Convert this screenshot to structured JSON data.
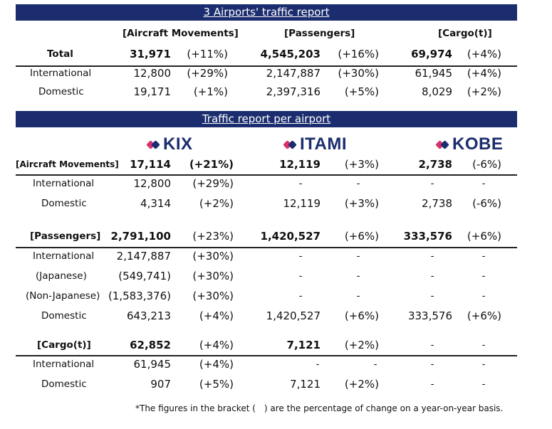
{
  "summary": {
    "title": "3 Airports' traffic report",
    "headers": [
      "[Aircraft Movements]",
      "[Passengers]",
      "[Cargo(t)]"
    ],
    "rows": [
      {
        "label": "Total",
        "am": "31,971",
        "am_pct": "(+11%)",
        "pax": "4,545,203",
        "pax_pct": "(+16%)",
        "cargo": "69,974",
        "cargo_pct": "(+4%)"
      },
      {
        "label": "International",
        "am": "12,800",
        "am_pct": "(+29%)",
        "pax": "2,147,887",
        "pax_pct": "(+30%)",
        "cargo": "61,945",
        "cargo_pct": "(+4%)"
      },
      {
        "label": "Domestic",
        "am": "19,171",
        "am_pct": "(+1%)",
        "pax": "2,397,316",
        "pax_pct": "(+5%)",
        "cargo": "8,029",
        "cargo_pct": "(+2%)"
      }
    ]
  },
  "per_airport": {
    "title": "Traffic report per airport",
    "airports": [
      {
        "name": "KIX",
        "icon": "kix-logo-icon",
        "color": "#1b2d6e"
      },
      {
        "name": "ITAMI",
        "icon": "itami-logo-icon",
        "color": "#1b2d6e"
      },
      {
        "name": "KOBE",
        "icon": "kobe-logo-icon",
        "color": "#1b2d6e"
      }
    ],
    "sections": [
      {
        "header": "[Aircraft Movements]",
        "kix": "17,114",
        "kix_pct": "(+21%)",
        "itami": "12,119",
        "itami_pct": "(+3%)",
        "kobe": "2,738",
        "kobe_pct": "(-6%)",
        "rows": [
          {
            "label": "International",
            "kix": "12,800",
            "kix_pct": "(+29%)",
            "itami": "-",
            "itami_pct": "-",
            "kobe": "-",
            "kobe_pct": "-"
          },
          {
            "label": "Domestic",
            "kix": "4,314",
            "kix_pct": "(+2%)",
            "itami": "12,119",
            "itami_pct": "(+3%)",
            "kobe": "2,738",
            "kobe_pct": "(-6%)"
          }
        ]
      },
      {
        "header": "[Passengers]",
        "kix": "2,791,100",
        "kix_pct": "(+23%)",
        "itami": "1,420,527",
        "itami_pct": "(+6%)",
        "kobe": "333,576",
        "kobe_pct": "(+6%)",
        "rows": [
          {
            "label": "International",
            "kix": "2,147,887",
            "kix_pct": "(+30%)",
            "itami": "-",
            "itami_pct": "-",
            "kobe": "-",
            "kobe_pct": "-"
          },
          {
            "label": "(Japanese)",
            "kix": "(549,741)",
            "kix_pct": "(+30%)",
            "itami": "-",
            "itami_pct": "-",
            "kobe": "-",
            "kobe_pct": "-"
          },
          {
            "label": "(Non-Japanese)",
            "kix": "(1,583,376)",
            "kix_pct": "(+30%)",
            "itami": "-",
            "itami_pct": "-",
            "kobe": "-",
            "kobe_pct": "-"
          },
          {
            "label": "Domestic",
            "kix": "643,213",
            "kix_pct": "(+4%)",
            "itami": "1,420,527",
            "itami_pct": "(+6%)",
            "kobe": "333,576",
            "kobe_pct": "(+6%)"
          }
        ]
      },
      {
        "header": "[Cargo(t)]",
        "kix": "62,852",
        "kix_pct": "(+4%)",
        "itami": "7,121",
        "itami_pct": "(+2%)",
        "kobe": "-",
        "kobe_pct": "-",
        "rows": [
          {
            "label": "International",
            "kix": "61,945",
            "kix_pct": "(+4%)",
            "itami": "-",
            "itami_pct": "-",
            "kobe": "-",
            "kobe_pct": "-"
          },
          {
            "label": "Domestic",
            "kix": "907",
            "kix_pct": "(+5%)",
            "itami": "7,121",
            "itami_pct": "(+2%)",
            "kobe": "-",
            "kobe_pct": "-"
          }
        ]
      }
    ]
  },
  "footnote": "*The figures in the bracket (　) are the percentage of change on a year-on-year basis.",
  "colors": {
    "banner": "#1b2d6e",
    "logo_pink": "#d8306e",
    "logo_navy": "#1b2d6e"
  }
}
